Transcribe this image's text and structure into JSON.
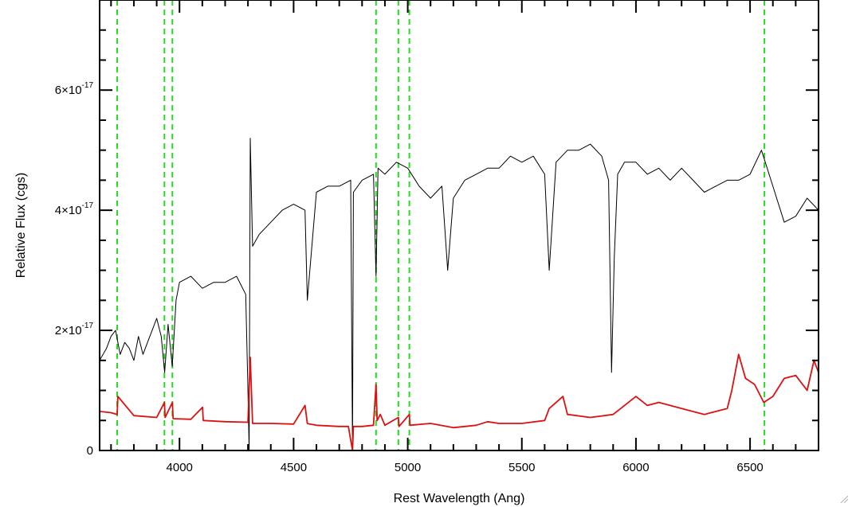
{
  "chart_data": {
    "type": "line",
    "title": "",
    "xlabel": "Rest Wavelength (Ang)",
    "ylabel": "Relative Flux (cgs)",
    "xlim": [
      3650,
      6800
    ],
    "ylim": [
      0,
      7.5e-17
    ],
    "x_ticks": [
      4000,
      4500,
      5000,
      5500,
      6000,
      6500
    ],
    "x_tick_labels": [
      "4000",
      "4500",
      "5000",
      "5500",
      "6000",
      "6500"
    ],
    "y_ticks": [
      {
        "value": 0,
        "mantissa": "0",
        "exponent": ""
      },
      {
        "value": 2e-17,
        "mantissa": "2×10",
        "exponent": "-17"
      },
      {
        "value": 4e-17,
        "mantissa": "4×10",
        "exponent": "-17"
      },
      {
        "value": 6e-17,
        "mantissa": "6×10",
        "exponent": "-17"
      }
    ],
    "grid": false,
    "vlines": {
      "color": "#22dd22",
      "style": "dashed",
      "x": [
        3727,
        3934,
        3969,
        4861,
        4959,
        5007,
        6563
      ]
    },
    "series": [
      {
        "color": "#000000",
        "x": [
          3650,
          3680,
          3700,
          3720,
          3740,
          3760,
          3780,
          3800,
          3820,
          3840,
          3860,
          3880,
          3900,
          3920,
          3935,
          3950,
          3968,
          3985,
          4000,
          4050,
          4100,
          4150,
          4200,
          4250,
          4290,
          4300,
          4305,
          4310,
          4320,
          4350,
          4400,
          4450,
          4500,
          4550,
          4560,
          4600,
          4650,
          4700,
          4750,
          4758,
          4762,
          4800,
          4850,
          4861,
          4870,
          4900,
          4950,
          5000,
          5050,
          5100,
          5150,
          5175,
          5200,
          5250,
          5300,
          5350,
          5400,
          5450,
          5500,
          5550,
          5600,
          5620,
          5650,
          5700,
          5750,
          5800,
          5850,
          5880,
          5893,
          5905,
          5920,
          5950,
          6000,
          6050,
          6100,
          6150,
          6200,
          6250,
          6300,
          6350,
          6400,
          6450,
          6500,
          6550,
          6600,
          6650,
          6700,
          6750,
          6800
        ],
        "y": [
          1.5e-17,
          1.7e-17,
          1.9e-17,
          2e-17,
          1.6e-17,
          1.8e-17,
          1.7e-17,
          1.5e-17,
          1.9e-17,
          1.6e-17,
          1.8e-17,
          2e-17,
          2.2e-17,
          1.9e-17,
          1.3e-17,
          2.1e-17,
          1.4e-17,
          2.5e-17,
          2.8e-17,
          2.9e-17,
          2.7e-17,
          2.8e-17,
          2.8e-17,
          2.9e-17,
          2.6e-17,
          1e-17,
          0.0,
          5.2e-17,
          3.4e-17,
          3.6e-17,
          3.8e-17,
          4e-17,
          4.1e-17,
          4e-17,
          2.5e-17,
          4.3e-17,
          4.4e-17,
          4.4e-17,
          4.5e-17,
          0.0,
          4.3e-17,
          4.5e-17,
          4.6e-17,
          2.9e-17,
          4.7e-17,
          4.6e-17,
          4.8e-17,
          4.7e-17,
          4.4e-17,
          4.2e-17,
          4.4e-17,
          3e-17,
          4.2e-17,
          4.5e-17,
          4.6e-17,
          4.7e-17,
          4.7e-17,
          4.9e-17,
          4.8e-17,
          4.9e-17,
          4.6e-17,
          3e-17,
          4.8e-17,
          5e-17,
          5e-17,
          5.1e-17,
          4.9e-17,
          4.5e-17,
          1.3e-17,
          3.2e-17,
          4.6e-17,
          4.8e-17,
          4.8e-17,
          4.6e-17,
          4.7e-17,
          4.5e-17,
          4.7e-17,
          4.5e-17,
          4.3e-17,
          4.4e-17,
          4.5e-17,
          4.5e-17,
          4.6e-17,
          5e-17,
          4.4e-17,
          3.8e-17,
          3.9e-17,
          4.2e-17,
          4e-17
        ]
      },
      {
        "color": "#dd1111",
        "x": [
          3650,
          3700,
          3727,
          3730,
          3800,
          3900,
          3934,
          3937,
          3969,
          3972,
          4050,
          4101,
          4104,
          4200,
          4300,
          4310,
          4320,
          4400,
          4500,
          4550,
          4560,
          4570,
          4600,
          4700,
          4740,
          4758,
          4762,
          4800,
          4850,
          4861,
          4866,
          4880,
          4900,
          4959,
          4962,
          5007,
          5010,
          5100,
          5200,
          5300,
          5350,
          5400,
          5500,
          5600,
          5620,
          5680,
          5700,
          5800,
          5900,
          5950,
          6000,
          6050,
          6100,
          6200,
          6300,
          6400,
          6420,
          6450,
          6480,
          6520,
          6560,
          6600,
          6650,
          6700,
          6750,
          6780,
          6800
        ],
        "y": [
          6.5e-18,
          6.3e-18,
          6e-18,
          9e-18,
          5.8e-18,
          5.5e-18,
          8e-18,
          5.5e-18,
          8e-18,
          5.3e-18,
          5.2e-18,
          7.2e-18,
          5e-18,
          4.8e-18,
          4.7e-18,
          1.55e-17,
          4.5e-18,
          4.5e-18,
          4.4e-18,
          7.5e-18,
          4.5e-18,
          4.4e-18,
          4.2e-18,
          4e-18,
          4e-18,
          -3e-18,
          4e-18,
          4e-18,
          4.2e-18,
          1.1e-17,
          5e-18,
          6e-18,
          4.2e-18,
          5.5e-18,
          4e-18,
          6e-18,
          4.2e-18,
          4.5e-18,
          3.8e-18,
          4.2e-18,
          4.8e-18,
          4.5e-18,
          4.5e-18,
          5e-18,
          7e-18,
          9e-18,
          6e-18,
          5.5e-18,
          6e-18,
          7.5e-18,
          9e-18,
          7.5e-18,
          8e-18,
          7e-18,
          6e-18,
          7e-18,
          1e-17,
          1.6e-17,
          1.2e-17,
          1.1e-17,
          8e-18,
          9e-18,
          1.2e-17,
          1.25e-17,
          1e-17,
          1.5e-17,
          1.3e-17
        ]
      }
    ]
  }
}
